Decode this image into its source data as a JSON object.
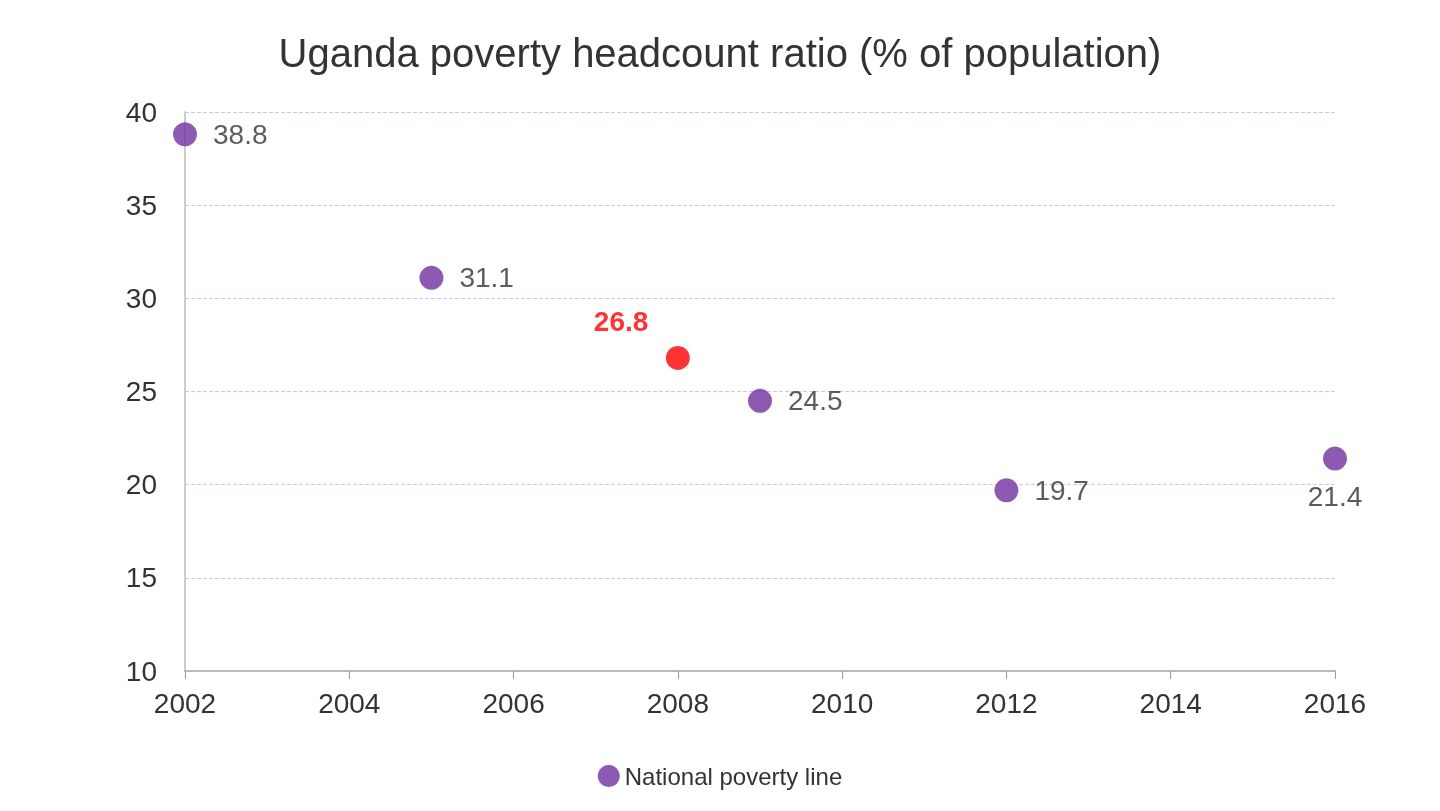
{
  "chart_data": {
    "type": "scatter",
    "title": "Uganda poverty headcount ratio (% of population)",
    "x": [
      2002,
      2005,
      2008,
      2009,
      2012,
      2016
    ],
    "series": [
      {
        "name": "National poverty line",
        "color": "#7030a0",
        "colors": [
          "#7030a0",
          "#7030a0",
          "#ff0000",
          "#7030a0",
          "#7030a0",
          "#7030a0"
        ],
        "values": [
          38.8,
          31.1,
          26.8,
          24.5,
          19.7,
          21.4
        ]
      }
    ],
    "xlim": [
      2002,
      2016
    ],
    "xticks": [
      2002,
      2004,
      2006,
      2008,
      2010,
      2012,
      2014,
      2016
    ],
    "ylim": [
      10,
      40
    ],
    "yticks": [
      10,
      15,
      20,
      25,
      30,
      35,
      40
    ],
    "grid": "y",
    "legend": "bottom",
    "marker": "circle",
    "data_labels": true
  }
}
